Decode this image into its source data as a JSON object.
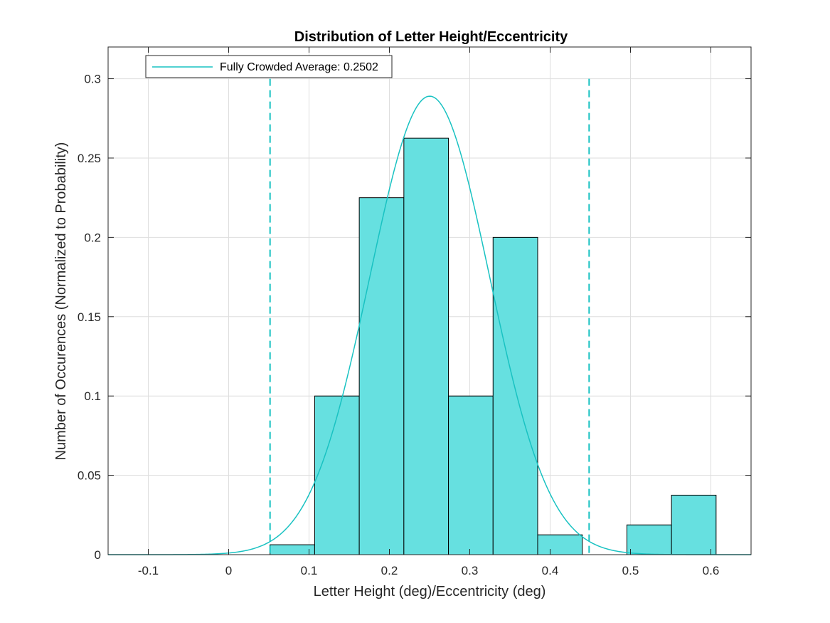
{
  "chart_data": {
    "type": "bar",
    "title": "Distribution of Letter Height/Eccentricity",
    "xlabel": "Letter Height (deg)/Eccentricity (deg)",
    "ylabel": "Number of Occurences (Normalized to Probability)",
    "xlim": [
      -0.15,
      0.65
    ],
    "ylim": [
      0,
      0.32
    ],
    "xticks": [
      -0.1,
      0,
      0.1,
      0.2,
      0.3,
      0.4,
      0.5,
      0.6
    ],
    "xtick_labels": [
      "-0.1",
      "0",
      "0.1",
      "0.2",
      "0.3",
      "0.4",
      "0.5",
      "0.6"
    ],
    "yticks": [
      0,
      0.05,
      0.1,
      0.15,
      0.2,
      0.25,
      0.3
    ],
    "ytick_labels": [
      "0",
      "0.05",
      "0.1",
      "0.15",
      "0.2",
      "0.25",
      "0.3"
    ],
    "grid": true,
    "legend_position": "top-left",
    "bar_color": "#66e0e0",
    "line_color": "#19c2c2",
    "histogram": {
      "bin_edges": [
        0.0515,
        0.107,
        0.1625,
        0.218,
        0.2735,
        0.329,
        0.3845,
        0.44,
        0.4955,
        0.551,
        0.6065
      ],
      "values": [
        0.00625,
        0.1,
        0.225,
        0.2625,
        0.1,
        0.2,
        0.0125,
        0,
        0.01875,
        0.0375
      ]
    },
    "fit_curve": {
      "name": "Fully Crowded Average: 0.2502",
      "mean": 0.2502,
      "sd": 0.0745,
      "peak": 0.289
    },
    "reference_lines": {
      "x": [
        0.0515,
        0.4485
      ],
      "style": "dashed"
    }
  }
}
